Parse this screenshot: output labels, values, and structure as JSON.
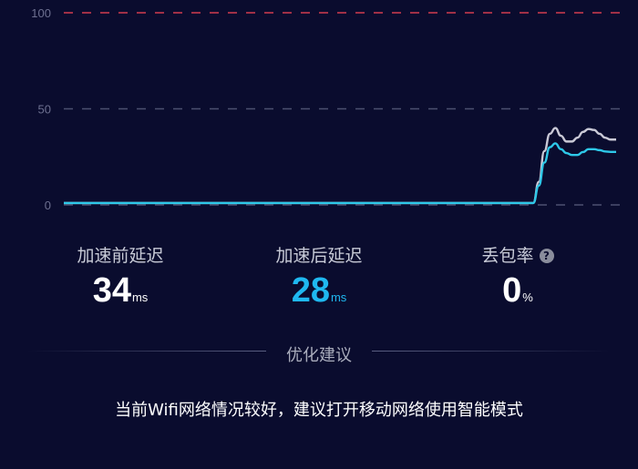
{
  "chart_data": {
    "type": "line",
    "ylim": [
      0,
      100
    ],
    "y_ticks": [
      "0",
      "50",
      "100"
    ],
    "threshold_line": {
      "value": 100,
      "color": "#d23c4e"
    },
    "grid": "dashed horizontal at ticks",
    "x": [
      0,
      85,
      86,
      87,
      88,
      89,
      90,
      91,
      92,
      93,
      94,
      95,
      96,
      97,
      98,
      99,
      100
    ],
    "series": [
      {
        "color": "#c9c9d6",
        "values": [
          1,
          1,
          12,
          28,
          37,
          40,
          36,
          33,
          33,
          35,
          38,
          39.5,
          39,
          37,
          35,
          34,
          34
        ]
      },
      {
        "color": "#2ec8e8",
        "values": [
          1,
          1,
          10,
          22,
          30,
          32,
          29,
          27,
          26,
          26,
          27.5,
          29,
          29,
          28.5,
          27.8,
          27.6,
          27.6
        ]
      }
    ]
  },
  "stats": [
    {
      "label": "加速前延迟",
      "value": "34",
      "unit": "ms",
      "color": "#ffffff"
    },
    {
      "label": "加速后延迟",
      "value": "28",
      "unit": "ms",
      "color": "#1fb8f0"
    },
    {
      "label": "丢包率",
      "value": "0",
      "unit": "%",
      "color": "#ffffff",
      "help": "?"
    }
  ],
  "section_title": "优化建议",
  "advice": "当前Wifi网络情况较好，建议打开移动网络使用智能模式"
}
